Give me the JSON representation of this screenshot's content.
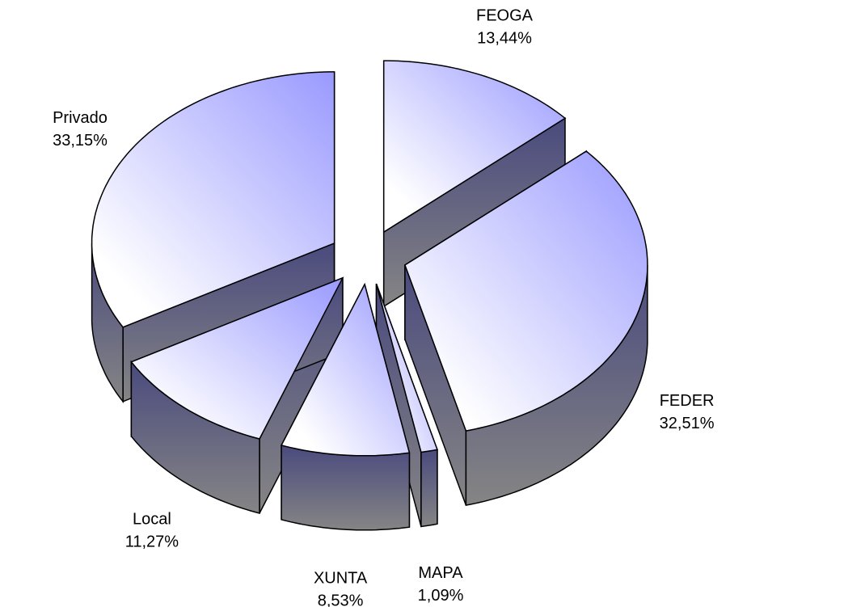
{
  "chart_data": {
    "type": "pie",
    "categories": [
      "FEOGA",
      "FEDER",
      "MAPA",
      "XUNTA",
      "Local",
      "Privado"
    ],
    "values": [
      13.44,
      32.51,
      1.09,
      8.53,
      11.27,
      33.15
    ],
    "value_labels": [
      "13,44%",
      "32,51%",
      "1,09%",
      "8,53%",
      "11,27%",
      "33,15%"
    ],
    "color": "#9999ff"
  }
}
